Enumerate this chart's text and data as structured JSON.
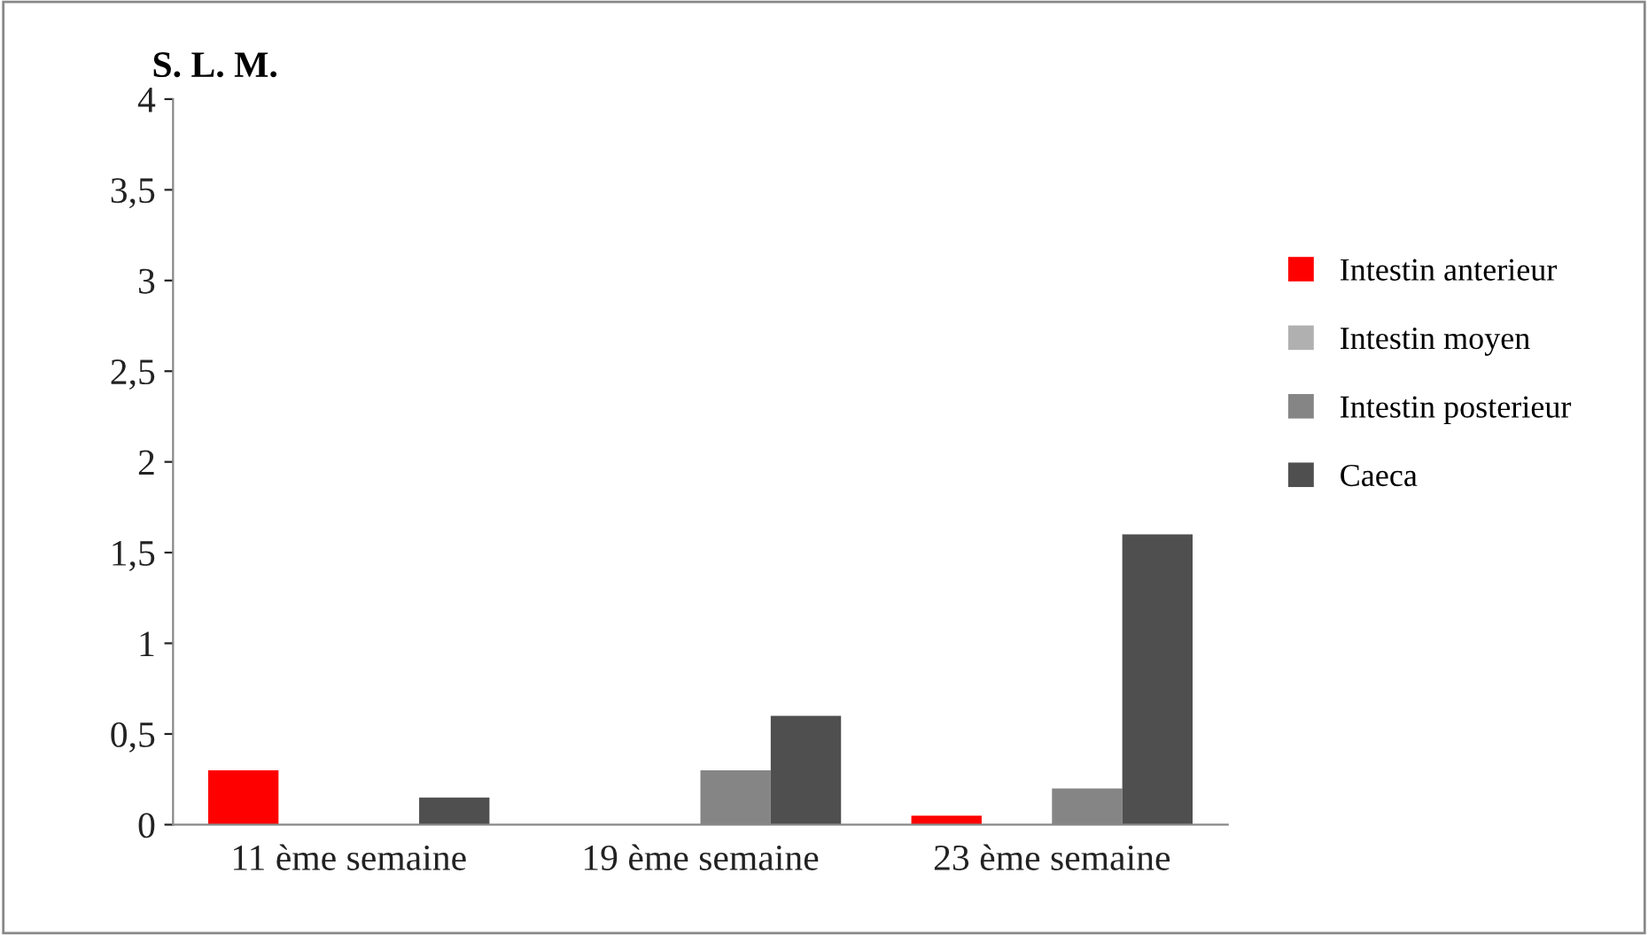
{
  "chart_data": {
    "type": "bar",
    "ylabel": "S. L. M.",
    "categories": [
      "11 ème semaine",
      "19 ème semaine",
      "23 ème semaine"
    ],
    "series": [
      {
        "name": "Intestin anterieur",
        "color": "#ff0000",
        "values": [
          0.3,
          0.0,
          0.05
        ]
      },
      {
        "name": "Intestin moyen",
        "color": "#b0b0b0",
        "values": [
          0.0,
          0.0,
          0.0
        ]
      },
      {
        "name": "Intestin posterieur",
        "color": "#858585",
        "values": [
          0.0,
          0.3,
          0.2
        ]
      },
      {
        "name": "Caeca",
        "color": "#4f4f4f",
        "values": [
          0.15,
          0.6,
          1.6
        ]
      }
    ],
    "ylim": [
      0,
      4
    ],
    "yticks": [
      0,
      {
        "value": 0.5,
        "label": "0,5"
      },
      1,
      {
        "value": 1.5,
        "label": "1,5"
      },
      2,
      {
        "value": 2.5,
        "label": "2,5"
      },
      3,
      {
        "value": 3.5,
        "label": "3,5"
      },
      4
    ],
    "grid": false,
    "legend": "right"
  }
}
